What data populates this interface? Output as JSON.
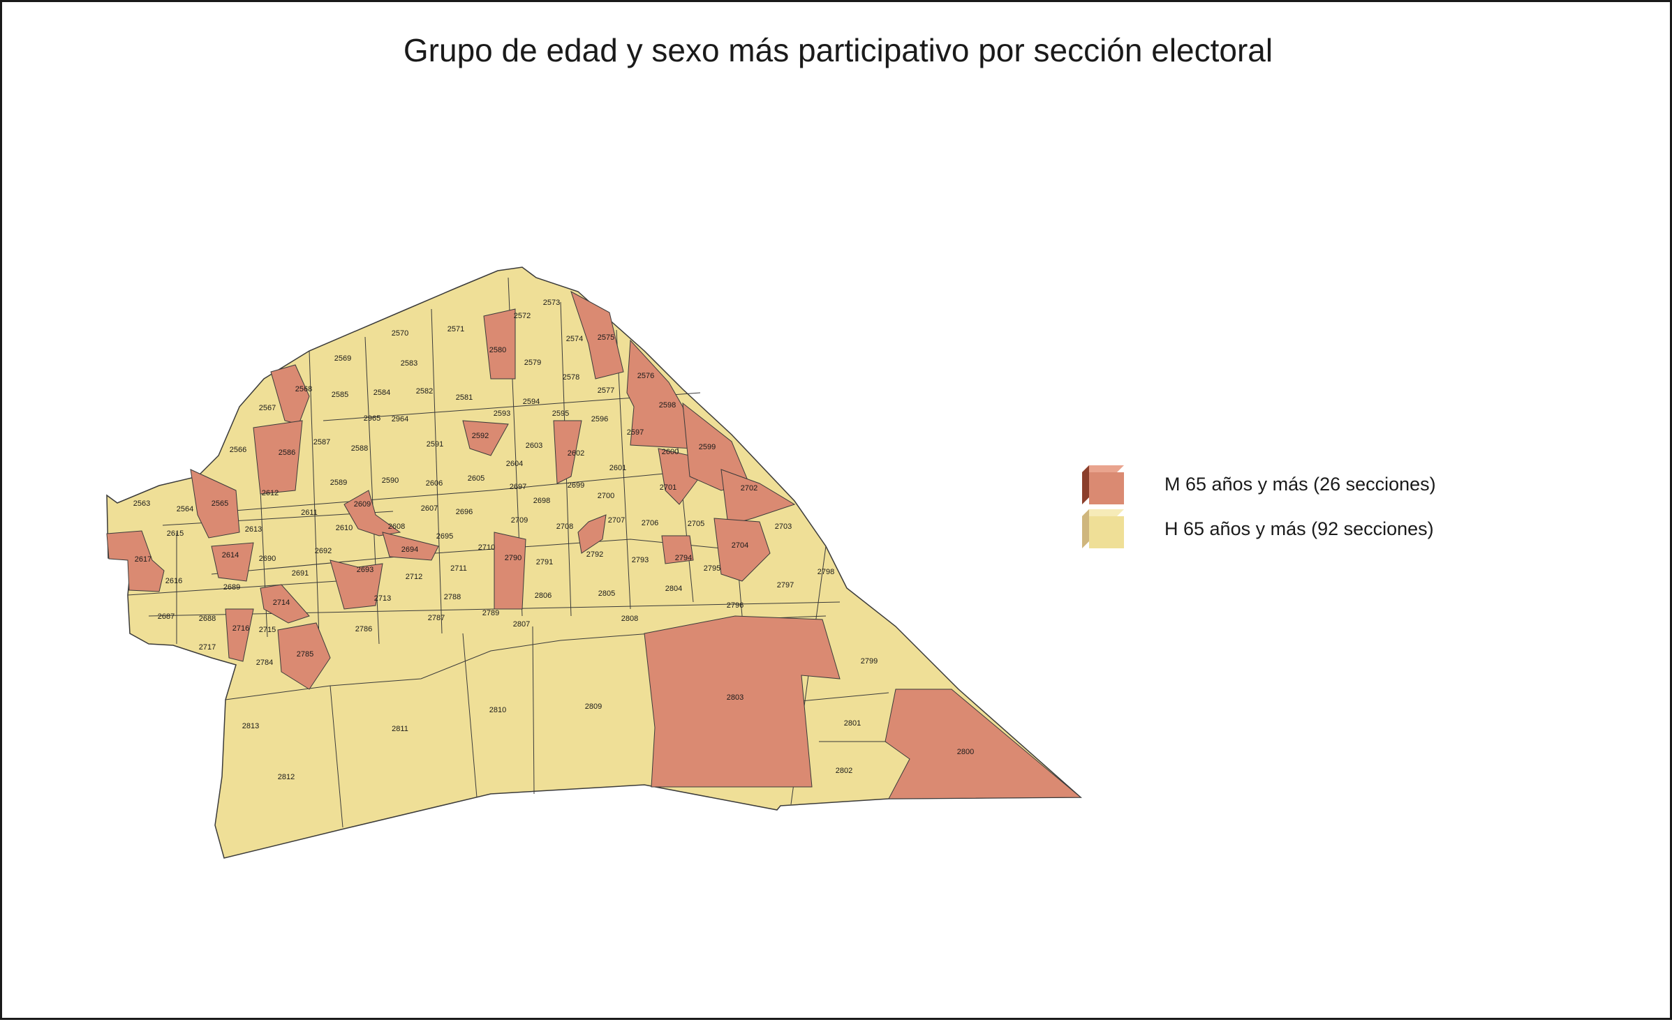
{
  "title": "Grupo de edad y sexo más participativo por sección electoral",
  "colors": {
    "female_group": "#DA8A72",
    "male_group": "#EFDF97",
    "outline": "#3a3a3a",
    "background": "#ffffff"
  },
  "legend": [
    {
      "key": "M",
      "label": "M 65 años y más (26 secciones)",
      "color": "#DA8A72"
    },
    {
      "key": "H",
      "label": "H 65 años y más (92 secciones)",
      "color": "#EFDF97"
    }
  ],
  "sections": [
    {
      "id": "2563",
      "group": "H"
    },
    {
      "id": "2564",
      "group": "H"
    },
    {
      "id": "2565",
      "group": "M"
    },
    {
      "id": "2566",
      "group": "H"
    },
    {
      "id": "2567",
      "group": "H"
    },
    {
      "id": "2568",
      "group": "M"
    },
    {
      "id": "2569",
      "group": "H"
    },
    {
      "id": "2570",
      "group": "H"
    },
    {
      "id": "2571",
      "group": "H"
    },
    {
      "id": "2572",
      "group": "H"
    },
    {
      "id": "2573",
      "group": "H"
    },
    {
      "id": "2574",
      "group": "H"
    },
    {
      "id": "2575",
      "group": "M"
    },
    {
      "id": "2576",
      "group": "M"
    },
    {
      "id": "2577",
      "group": "H"
    },
    {
      "id": "2578",
      "group": "H"
    },
    {
      "id": "2579",
      "group": "H"
    },
    {
      "id": "2580",
      "group": "M"
    },
    {
      "id": "2581",
      "group": "H"
    },
    {
      "id": "2582",
      "group": "H"
    },
    {
      "id": "2583",
      "group": "H"
    },
    {
      "id": "2584",
      "group": "H"
    },
    {
      "id": "2585",
      "group": "H"
    },
    {
      "id": "2586",
      "group": "M"
    },
    {
      "id": "2587",
      "group": "H"
    },
    {
      "id": "2588",
      "group": "H"
    },
    {
      "id": "2589",
      "group": "H"
    },
    {
      "id": "2590",
      "group": "H"
    },
    {
      "id": "2591",
      "group": "H"
    },
    {
      "id": "2592",
      "group": "M"
    },
    {
      "id": "2593",
      "group": "H"
    },
    {
      "id": "2594",
      "group": "H"
    },
    {
      "id": "2595",
      "group": "H"
    },
    {
      "id": "2596",
      "group": "H"
    },
    {
      "id": "2597",
      "group": "H"
    },
    {
      "id": "2598",
      "group": "M"
    },
    {
      "id": "2599",
      "group": "M"
    },
    {
      "id": "2600",
      "group": "M"
    },
    {
      "id": "2601",
      "group": "H"
    },
    {
      "id": "2602",
      "group": "M"
    },
    {
      "id": "2603",
      "group": "H"
    },
    {
      "id": "2604",
      "group": "H"
    },
    {
      "id": "2605",
      "group": "H"
    },
    {
      "id": "2606",
      "group": "H"
    },
    {
      "id": "2607",
      "group": "H"
    },
    {
      "id": "2608",
      "group": "H"
    },
    {
      "id": "2609",
      "group": "M"
    },
    {
      "id": "2610",
      "group": "H"
    },
    {
      "id": "2611",
      "group": "H"
    },
    {
      "id": "2612",
      "group": "H"
    },
    {
      "id": "2613",
      "group": "H"
    },
    {
      "id": "2614",
      "group": "M"
    },
    {
      "id": "2615",
      "group": "H"
    },
    {
      "id": "2616",
      "group": "H"
    },
    {
      "id": "2617",
      "group": "M"
    },
    {
      "id": "2687",
      "group": "H"
    },
    {
      "id": "2688",
      "group": "H"
    },
    {
      "id": "2689",
      "group": "H"
    },
    {
      "id": "2690",
      "group": "H"
    },
    {
      "id": "2691",
      "group": "H"
    },
    {
      "id": "2692",
      "group": "H"
    },
    {
      "id": "2693",
      "group": "M"
    },
    {
      "id": "2694",
      "group": "M"
    },
    {
      "id": "2695",
      "group": "H"
    },
    {
      "id": "2696",
      "group": "H"
    },
    {
      "id": "2697",
      "group": "H"
    },
    {
      "id": "2698",
      "group": "H"
    },
    {
      "id": "2699",
      "group": "H"
    },
    {
      "id": "2700",
      "group": "H"
    },
    {
      "id": "2701",
      "group": "H"
    },
    {
      "id": "2702",
      "group": "M"
    },
    {
      "id": "2703",
      "group": "H"
    },
    {
      "id": "2704",
      "group": "M"
    },
    {
      "id": "2705",
      "group": "H"
    },
    {
      "id": "2706",
      "group": "H"
    },
    {
      "id": "2707",
      "group": "M"
    },
    {
      "id": "2708",
      "group": "H"
    },
    {
      "id": "2709",
      "group": "H"
    },
    {
      "id": "2710",
      "group": "H"
    },
    {
      "id": "2711",
      "group": "H"
    },
    {
      "id": "2712",
      "group": "H"
    },
    {
      "id": "2713",
      "group": "H"
    },
    {
      "id": "2714",
      "group": "M"
    },
    {
      "id": "2715",
      "group": "H"
    },
    {
      "id": "2716",
      "group": "M"
    },
    {
      "id": "2717",
      "group": "H"
    },
    {
      "id": "2784",
      "group": "H"
    },
    {
      "id": "2785",
      "group": "M"
    },
    {
      "id": "2786",
      "group": "H"
    },
    {
      "id": "2787",
      "group": "H"
    },
    {
      "id": "2788",
      "group": "H"
    },
    {
      "id": "2789",
      "group": "H"
    },
    {
      "id": "2790",
      "group": "M"
    },
    {
      "id": "2791",
      "group": "H"
    },
    {
      "id": "2792",
      "group": "H"
    },
    {
      "id": "2793",
      "group": "H"
    },
    {
      "id": "2794",
      "group": "M"
    },
    {
      "id": "2795",
      "group": "H"
    },
    {
      "id": "2796",
      "group": "H"
    },
    {
      "id": "2797",
      "group": "H"
    },
    {
      "id": "2798",
      "group": "H"
    },
    {
      "id": "2799",
      "group": "H"
    },
    {
      "id": "2800",
      "group": "M"
    },
    {
      "id": "2801",
      "group": "H"
    },
    {
      "id": "2802",
      "group": "H"
    },
    {
      "id": "2803",
      "group": "M"
    },
    {
      "id": "2804",
      "group": "H"
    },
    {
      "id": "2805",
      "group": "H"
    },
    {
      "id": "2806",
      "group": "H"
    },
    {
      "id": "2807",
      "group": "H"
    },
    {
      "id": "2808",
      "group": "H"
    },
    {
      "id": "2809",
      "group": "H"
    },
    {
      "id": "2810",
      "group": "H"
    },
    {
      "id": "2811",
      "group": "H"
    },
    {
      "id": "2812",
      "group": "H"
    },
    {
      "id": "2813",
      "group": "H"
    },
    {
      "id": "2964",
      "group": "H"
    },
    {
      "id": "2965",
      "group": "H"
    }
  ]
}
